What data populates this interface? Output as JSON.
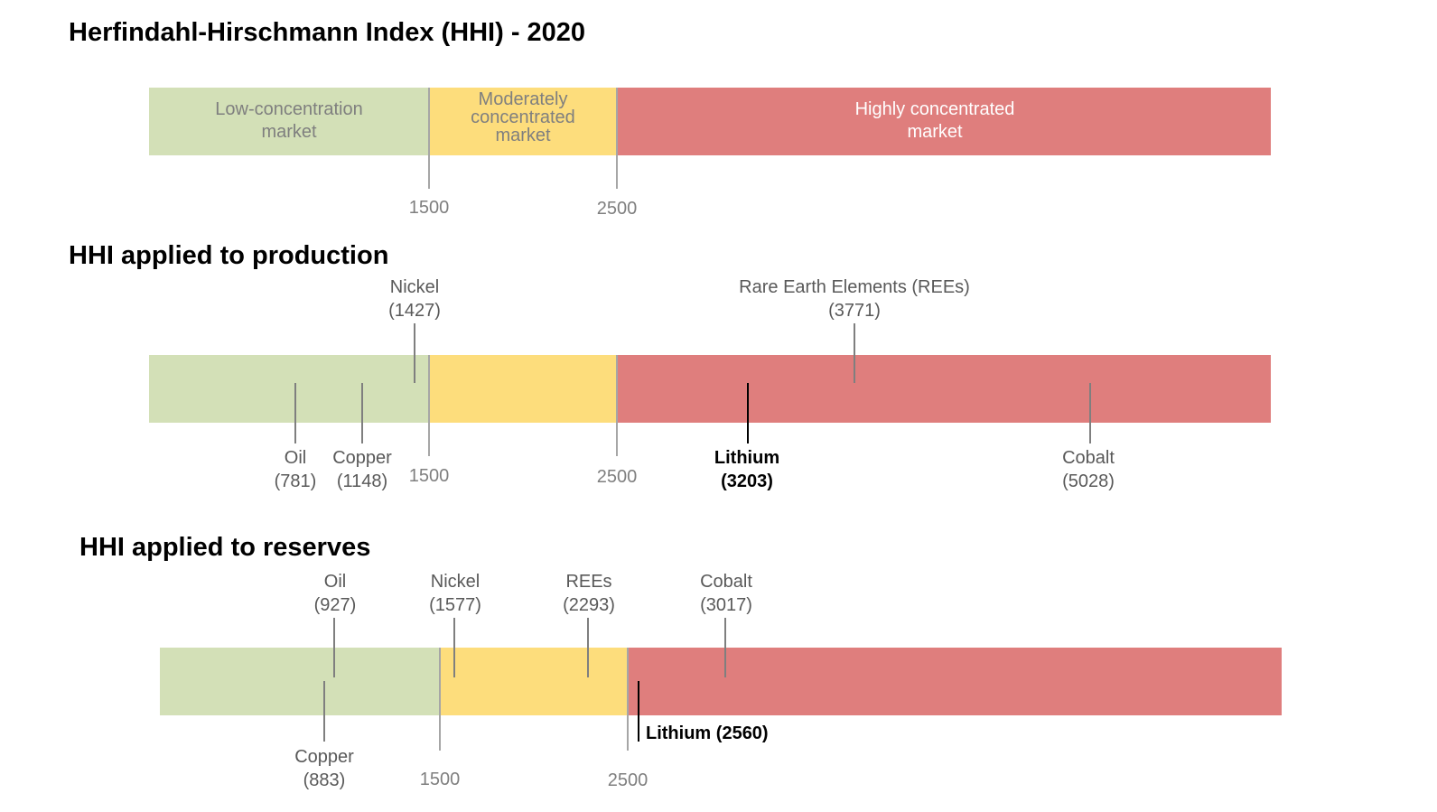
{
  "title": "Herfindahl-Hirschmann Index (HHI) - 2020",
  "colors": {
    "low": "#d3e0b7",
    "moderate": "#fddd7c",
    "high": "#df7e7d",
    "marker": "#7f7f7f",
    "highlight": "#000000"
  },
  "scale": {
    "zones": [
      {
        "name": "low",
        "label_lines": [
          "Low-concentration",
          "market"
        ]
      },
      {
        "name": "moderate",
        "label_lines": [
          "Moderately",
          "concentrated",
          "market"
        ]
      },
      {
        "name": "high",
        "label_lines": [
          "Highly concentrated",
          "market"
        ]
      }
    ],
    "thresholds": [
      "1500",
      "2500"
    ]
  },
  "production": {
    "heading": "HHI applied to production",
    "thresholds": [
      "1500",
      "2500"
    ],
    "markers": [
      {
        "name": "Nickel",
        "value": "(1427)",
        "hhi": 1427
      },
      {
        "name": "Rare Earth Elements (REEs)",
        "value": "(3771)",
        "hhi": 3771
      },
      {
        "name": "Oil",
        "value": "(781)",
        "hhi": 781
      },
      {
        "name": "Copper",
        "value": "(1148)",
        "hhi": 1148
      },
      {
        "name": "Lithium",
        "value": "(3203)",
        "hhi": 3203,
        "highlight": true
      },
      {
        "name": "Cobalt",
        "value": "(5028)",
        "hhi": 5028
      }
    ]
  },
  "reserves": {
    "heading": "HHI applied to reserves",
    "thresholds": [
      "1500",
      "2500"
    ],
    "markers": [
      {
        "name": "Oil",
        "value": "(927)",
        "hhi": 927
      },
      {
        "name": "Nickel",
        "value": "(1577)",
        "hhi": 1577
      },
      {
        "name": "REEs",
        "value": "(2293)",
        "hhi": 2293
      },
      {
        "name": "Cobalt",
        "value": "(3017)",
        "hhi": 3017
      },
      {
        "name": "Copper",
        "value": "(883)",
        "hhi": 883
      },
      {
        "name": "Lithium",
        "value": "(2560)",
        "hhi": 2560,
        "highlight": true
      }
    ]
  }
}
